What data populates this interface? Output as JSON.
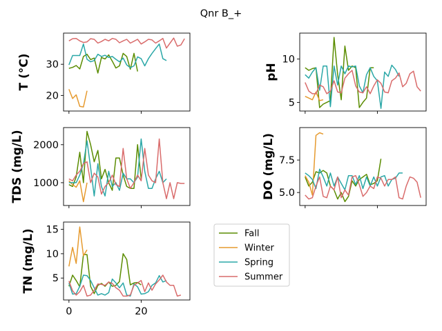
{
  "title": "Qnr B_+",
  "colors": {
    "Fall": "#5a8c00",
    "Winter": "#e69a2e",
    "Spring": "#2aa7a7",
    "Summer": "#d96b6b"
  },
  "chart_data": [
    {
      "type": "line",
      "ylabel": "T  (°C)",
      "xlim": [
        -1.5,
        33.5
      ],
      "ylim": [
        15,
        40
      ],
      "yticks": [
        20,
        30
      ],
      "xticks": [
        0,
        20
      ],
      "show_xticklabels": false,
      "series": [
        {
          "name": "Fall",
          "values": [
            28.7,
            29,
            29.6,
            28.5,
            32.5,
            33.2,
            31.5,
            32,
            27.2,
            32.2,
            31.7,
            33,
            31,
            28.8,
            29.5,
            33.5,
            32.5,
            28.4,
            33.5,
            27.7
          ]
        },
        {
          "name": "Winter",
          "values": [
            22,
            19,
            20.2,
            16.5,
            16.3,
            21.5
          ]
        },
        {
          "name": "Spring",
          "values": [
            29.8,
            32.8,
            32.8,
            32.8,
            36.5,
            31.6,
            30.8,
            31.2,
            33.2,
            32.5,
            32.9,
            32.2,
            32.5,
            31.6,
            30.8,
            32,
            29.8,
            28.9,
            29.5,
            32.4,
            31.8,
            29.5,
            31.8,
            33.5,
            35,
            36.5,
            31.8,
            31.2
          ]
        },
        {
          "name": "Summer",
          "values": [
            37.5,
            38.2,
            38.3,
            37.5,
            37,
            37.2,
            38.2,
            38,
            36.8,
            37.3,
            38,
            37.5,
            38.3,
            38,
            36.9,
            37.5,
            38,
            36.8,
            37.4,
            38,
            36.5,
            37.2,
            38,
            37.8,
            36.8,
            37.5,
            38.3,
            35.2,
            36.8,
            38.4,
            35.8,
            36.2,
            38.2
          ]
        }
      ]
    },
    {
      "type": "line",
      "ylabel": "pH",
      "xlim": [
        -1.5,
        33.5
      ],
      "ylim": [
        4,
        13
      ],
      "yticks": [
        5,
        10
      ],
      "xticks": [
        0,
        20
      ],
      "show_xticklabels": false,
      "series": [
        {
          "name": "Fall",
          "values": [
            9,
            8.7,
            8.9,
            9,
            4.4,
            4.8,
            5,
            5.2,
            12.5,
            8.2,
            5.3,
            11.5,
            8.7,
            9.2,
            9,
            4.4,
            5,
            5.5,
            9,
            9
          ]
        },
        {
          "name": "Winter",
          "values": [
            5.7,
            5.5,
            5.3,
            6.2,
            5.2,
            5.3
          ]
        },
        {
          "name": "Spring",
          "values": [
            8.2,
            7.8,
            8.5,
            9,
            6.4,
            9.2,
            9.2,
            4.5,
            9.2,
            7,
            9.2,
            8.3,
            9.2,
            9.1,
            9.2,
            6.9,
            6.1,
            8.2,
            9,
            8,
            7.5,
            4.3,
            8.5,
            8,
            9.3,
            8.8,
            8
          ]
        },
        {
          "name": "Summer",
          "values": [
            7.3,
            6.3,
            6,
            6,
            7,
            6.8,
            6,
            6.3,
            7.5,
            6.2,
            6.1,
            7.8,
            8.3,
            8.7,
            6.9,
            6.2,
            6.1,
            6.8,
            6,
            6.9,
            7.6,
            7.2,
            6.2,
            6.1,
            7.5,
            7.8,
            8.4,
            6.8,
            7.2,
            8.3,
            8.6,
            6.8,
            6.3
          ]
        }
      ]
    },
    {
      "type": "line",
      "ylabel": "TDS (mg/L)",
      "xlim": [
        -1.5,
        33.5
      ],
      "ylim": [
        400,
        2450
      ],
      "yticks": [
        1000,
        2000
      ],
      "xticks": [
        0,
        20
      ],
      "show_xticklabels": false,
      "series": [
        {
          "name": "Fall",
          "values": [
            950,
            900,
            1150,
            1800,
            1000,
            2350,
            2000,
            1550,
            1850,
            1100,
            1350,
            1000,
            800,
            1650,
            1650,
            1200,
            900,
            850,
            850,
            2000,
            1100
          ]
        },
        {
          "name": "Winter",
          "values": [
            1050,
            950,
            880,
            1050,
            500,
            1000
          ]
        },
        {
          "name": "Spring",
          "values": [
            1000,
            1000,
            1000,
            1200,
            1500,
            2100,
            1400,
            650,
            1500,
            900,
            650,
            1300,
            900,
            1000,
            800,
            1250,
            1100,
            1100,
            1000,
            1150,
            2150,
            1300,
            850,
            850,
            1100,
            1300,
            1000,
            1100
          ]
        },
        {
          "name": "Summer",
          "values": [
            1100,
            1050,
            1200,
            1300,
            1500,
            1550,
            1000,
            1250,
            1150,
            700,
            900,
            1000,
            1200,
            950,
            900,
            1900,
            1100,
            850,
            1000,
            1200,
            1050,
            1900,
            1200,
            1050,
            1000,
            2150,
            1000,
            580,
            1000,
            580,
            1000,
            980,
            980
          ]
        }
      ]
    },
    {
      "type": "line",
      "ylabel": "DO (mg/L)",
      "xlim": [
        -1.5,
        33.5
      ],
      "ylim": [
        4,
        10
      ],
      "yticks": [
        5.0,
        7.5
      ],
      "xticks": [
        0,
        20
      ],
      "show_xticklabels": false,
      "series": [
        {
          "name": "Fall",
          "values": [
            6.2,
            5.5,
            5.8,
            6.6,
            6.5,
            6.7,
            6.5,
            5.5,
            5.2,
            4.5,
            5,
            4.3,
            4.7,
            5.9,
            5.5,
            6,
            6.2,
            6.4,
            5.6,
            5.7,
            5.9,
            7.6
          ]
        },
        {
          "name": "Winter",
          "values": [
            6.3,
            5.8,
            4.8,
            9.4,
            9.6,
            9.5
          ]
        },
        {
          "name": "Spring",
          "values": [
            6.5,
            6.3,
            6,
            5.3,
            6.8,
            6.2,
            5.5,
            6.5,
            5.5,
            6.2,
            5.7,
            5.2,
            6.3,
            6.3,
            5.6,
            6.3,
            5.3,
            6.2,
            5.5,
            6.2,
            5.5,
            6.2,
            6.3,
            5.5,
            6,
            6.1,
            6.5,
            6.5
          ]
        },
        {
          "name": "Summer",
          "values": [
            4.8,
            4.5,
            4.6,
            5.5,
            6.2,
            4.7,
            4.6,
            5.5,
            5.2,
            6.2,
            4.6,
            5.2,
            4.8,
            6.2,
            6.3,
            5.6,
            4.7,
            5,
            5.5,
            5.3,
            6.2,
            6.1,
            5.5,
            6,
            6,
            6.2,
            4.6,
            4.5,
            5.5,
            6.2,
            6.1,
            5.8,
            4.6
          ]
        }
      ]
    },
    {
      "type": "line",
      "ylabel": "TN (mg/L)",
      "xlim": [
        -1.5,
        33.5
      ],
      "ylim": [
        0.5,
        16.5
      ],
      "yticks": [
        5,
        10,
        15
      ],
      "xticks": [
        0,
        20
      ],
      "show_xticklabels": true,
      "series": [
        {
          "name": "Fall",
          "values": [
            3.3,
            5.6,
            4.5,
            3.2,
            9.8,
            9.8,
            3.3,
            1.8,
            3.5,
            3.9,
            3.3,
            4.2,
            3.3,
            3.5,
            4.3,
            10,
            8.8,
            3.6,
            4,
            4.1,
            3.6
          ]
        },
        {
          "name": "Winter",
          "values": [
            7.4,
            11.3,
            8,
            15.5,
            9.6,
            10.8
          ]
        },
        {
          "name": "Spring",
          "values": [
            4,
            1.7,
            1.8,
            3.3,
            5.6,
            5.5,
            4.5,
            3,
            1.5,
            1.8,
            1.5,
            2,
            4.8,
            4,
            3,
            4,
            1.5,
            1.3,
            3.8,
            3.2,
            1.7,
            1.8,
            2.2,
            3.5,
            4,
            5.5,
            4.2,
            4.5
          ]
        },
        {
          "name": "Summer",
          "values": [
            4.4,
            2.4,
            1.5,
            2.2,
            3.5,
            1.3,
            1.5,
            2.5,
            3.8,
            3.7,
            3.5,
            4.2,
            3.9,
            3,
            2.5,
            1.3,
            1.3,
            1.5,
            3.5,
            4,
            4.5,
            2.2,
            4,
            2.5,
            3.8,
            4.6,
            5.6,
            4.2,
            3.5,
            3.5,
            1.3,
            1.5
          ]
        }
      ]
    }
  ],
  "legend": [
    "Fall",
    "Winter",
    "Spring",
    "Summer"
  ]
}
